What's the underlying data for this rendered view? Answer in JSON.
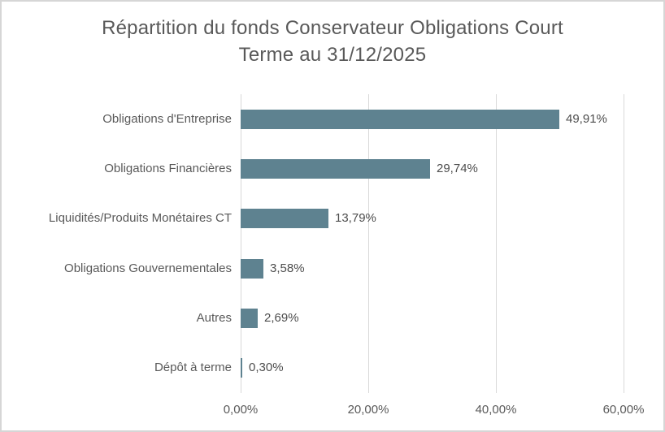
{
  "title": {
    "line1": "Répartition du fonds Conservateur Obligations Court",
    "line2": "Terme au 31/12/2025"
  },
  "chart_data": {
    "type": "bar",
    "orientation": "horizontal",
    "title": "Répartition du fonds Conservateur Obligations Court Terme au 31/12/2025",
    "categories": [
      "Obligations d'Entreprise",
      "Obligations Financières",
      "Liquidités/Produits Monétaires CT",
      "Obligations Gouvernementales",
      "Autres",
      "Dépôt à terme"
    ],
    "values": [
      49.91,
      29.74,
      13.79,
      3.58,
      2.69,
      0.3
    ],
    "data_labels": [
      "49,91%",
      "29,74%",
      "13,79%",
      "3,58%",
      "2,69%",
      "0,30%"
    ],
    "x_ticks": [
      {
        "value": 0,
        "label": "0,00%"
      },
      {
        "value": 20,
        "label": "20,00%"
      },
      {
        "value": 40,
        "label": "40,00%"
      },
      {
        "value": 60,
        "label": "60,00%"
      }
    ],
    "xlim": [
      0,
      60
    ],
    "grid": true,
    "legend": "none",
    "colors": {
      "bar": "#5e8290",
      "gridline": "#d9d9d9",
      "text": "#595959",
      "data_label_text": "#4d4d4d",
      "border": "#d6d6d6",
      "background": "#ffffff"
    }
  }
}
